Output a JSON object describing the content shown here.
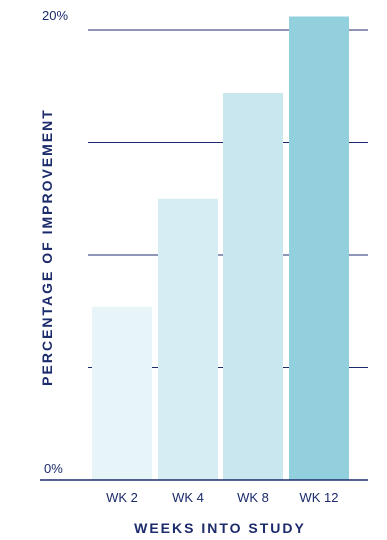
{
  "chart_data": {
    "type": "bar",
    "categories": [
      "WK 2",
      "WK 4",
      "WK 8",
      "WK 12"
    ],
    "values": [
      7.7,
      12.5,
      17.2,
      20.6
    ],
    "xlabel": "WEEKS INTO STUDY",
    "ylabel": "PERCENTAGE OF IMPROVEMENT",
    "ylim": [
      0,
      20
    ],
    "y_tick_labels": [
      "0%",
      "20%"
    ],
    "gridlines": [
      5,
      10,
      15,
      20
    ],
    "grid": true,
    "colors": {
      "bars": [
        "#e8f5f8",
        "#d6eef3",
        "#c8e7ef",
        "#92d0dd"
      ],
      "axis": "#1c2b6b",
      "gridline": "#1c2b6b",
      "text": "#1c2b6b"
    }
  }
}
